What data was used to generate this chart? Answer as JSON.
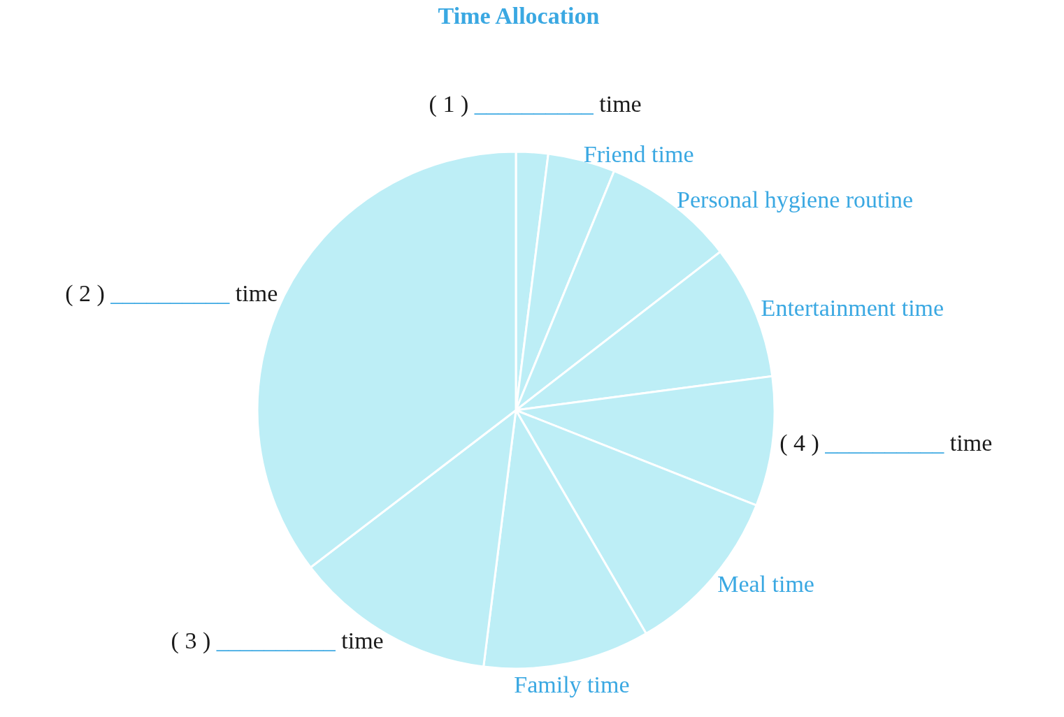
{
  "chart_data": {
    "type": "pie",
    "title": "Time Allocation",
    "categories": [
      "( 1 ) __________ time",
      "Friend time",
      "Personal hygiene routine",
      "Entertainment time",
      "( 4 ) __________ time",
      "Meal time",
      "Family time",
      "( 3 ) __________ time",
      "( 2 ) __________ time"
    ],
    "values": [
      2.0,
      4.2,
      8.3,
      8.4,
      8.1,
      10.6,
      10.4,
      12.6,
      35.4
    ],
    "colors": [
      "#bdeef6",
      "#bdeef6",
      "#bdeef6",
      "#bdeef6",
      "#bdeef6",
      "#bdeef6",
      "#bdeef6",
      "#bdeef6",
      "#bdeef6"
    ]
  }
}
